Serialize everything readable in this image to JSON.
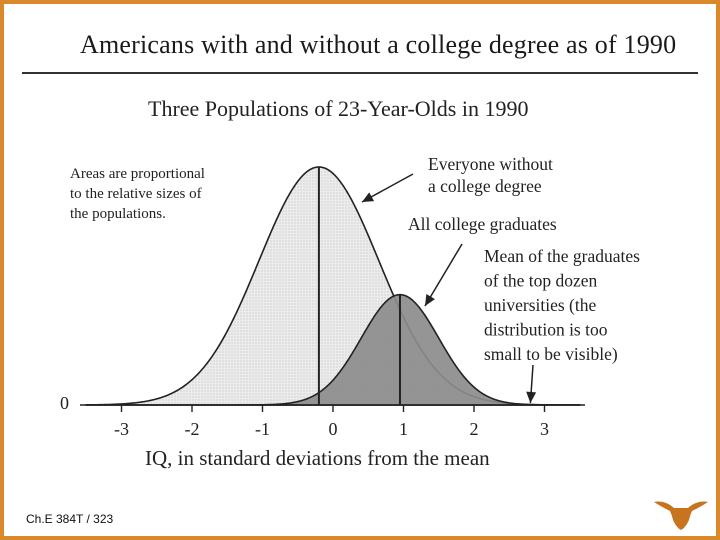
{
  "slide": {
    "title": "Americans with and without a college degree as of 1990",
    "footer": "Ch.E 384T / 323",
    "logo_icon": "longhorn-icon",
    "accent_color": "#d9882a"
  },
  "chart_data": {
    "type": "area",
    "title": "Three Populations of 23-Year-Olds in 1990",
    "xlabel": "IQ, in standard deviations from the mean",
    "ylabel": "",
    "x_ticks": [
      -3,
      -2,
      -1,
      0,
      1,
      2,
      3
    ],
    "y_tick_label": "0",
    "xlim": [
      -3.5,
      3.5
    ],
    "series": [
      {
        "name": "Everyone without a college degree",
        "mean": -0.2,
        "sd": 0.85,
        "relative_size": 1.0,
        "fill": "#e6e6e6"
      },
      {
        "name": "All college graduates",
        "mean": 0.95,
        "sd": 0.55,
        "relative_size": 0.3,
        "fill": "#8c8c8c"
      }
    ],
    "mean_markers": [
      -0.2,
      0.95
    ],
    "annotations": [
      {
        "text_lines": [
          "Areas are proportional",
          "to the relative sizes of",
          "the populations."
        ]
      },
      {
        "text_lines": [
          "Everyone without",
          "a college degree"
        ]
      },
      {
        "text_lines": [
          "All college graduates"
        ]
      },
      {
        "text_lines": [
          "Mean of the graduates",
          "of the top dozen",
          "universities (the",
          "distribution is too",
          "small to be visible)"
        ],
        "x_value": 2.8
      }
    ]
  }
}
